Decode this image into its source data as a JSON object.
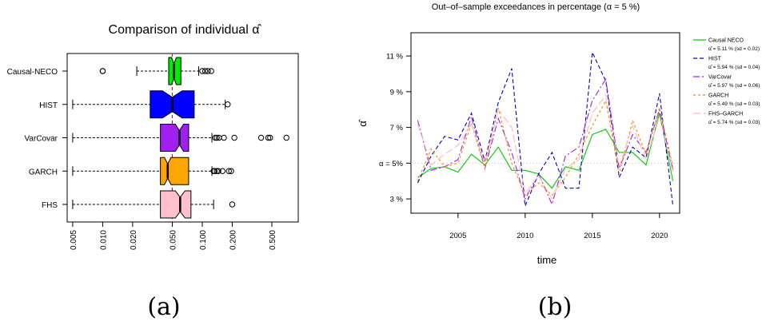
{
  "chart_data": [
    {
      "type": "boxplot",
      "title": "Comparison of individual α̂",
      "xscale": "log",
      "xlim": [
        0.005,
        0.5
      ],
      "xticks": [
        "0.005",
        "0.010",
        "0.020",
        "0.050",
        "0.100",
        "0.200",
        "0.500"
      ],
      "reference_line": 0.05,
      "series": [
        {
          "name": "Causal-NECO",
          "color": "#00ee00",
          "whisker_low": 0.022,
          "q1": 0.046,
          "median": 0.052,
          "q3": 0.061,
          "whisker_high": 0.092,
          "outliers": [
            0.01,
            0.01,
            0.1,
            0.107,
            0.114,
            0.123
          ]
        },
        {
          "name": "HIST",
          "color": "#0000ff",
          "whisker_low": 0.005,
          "q1": 0.03,
          "median": 0.05,
          "q3": 0.083,
          "whisker_high": 0.17,
          "outliers": [
            0.18
          ]
        },
        {
          "name": "VarCovar",
          "color": "#a020f0",
          "whisker_low": 0.005,
          "q1": 0.038,
          "median": 0.059,
          "q3": 0.073,
          "whisker_high": 0.125,
          "outliers": [
            0.135,
            0.14,
            0.147,
            0.165,
            0.21,
            0.39,
            0.46,
            0.48,
            0.7
          ]
        },
        {
          "name": "GARCH",
          "color": "#ffa500",
          "whisker_low": 0.005,
          "q1": 0.038,
          "median": 0.045,
          "q3": 0.073,
          "whisker_high": 0.125,
          "outliers": [
            0.13,
            0.133,
            0.14,
            0.145,
            0.16,
            0.185,
            0.195
          ]
        },
        {
          "name": "FHS",
          "color": "#ffc0cb",
          "whisker_low": 0.005,
          "q1": 0.038,
          "median": 0.06,
          "q3": 0.077,
          "whisker_high": 0.13,
          "outliers": [
            0.2
          ]
        }
      ]
    },
    {
      "type": "line",
      "title": "Out–of–sample exceedances in percentage (α = 5 %)",
      "xlabel": "time",
      "ylabel": "α̂",
      "x": [
        2002,
        2003,
        2004,
        2005,
        2006,
        2007,
        2008,
        2009,
        2010,
        2011,
        2012,
        2013,
        2014,
        2015,
        2016,
        2017,
        2018,
        2019,
        2020,
        2021
      ],
      "xlim": [
        2001.5,
        2021.5
      ],
      "xticks": [
        "2005",
        "2010",
        "2015",
        "2020"
      ],
      "ylim": [
        2.2,
        12.3
      ],
      "yticks": [
        3,
        5,
        7,
        9,
        11
      ],
      "ytick_labels": [
        "3 %",
        "α = 5%",
        "7 %",
        "9 %",
        "11 %"
      ],
      "hline": 5,
      "series": [
        {
          "name": "Causal NECO",
          "stat": "α̂ = 5.11 % (sd = 0.02)",
          "color": "#00cc00",
          "dash": "",
          "values": [
            4.2,
            4.7,
            4.8,
            4.5,
            5.5,
            4.9,
            5.9,
            4.6,
            4.6,
            4.4,
            3.6,
            4.8,
            4.6,
            6.6,
            6.9,
            5.6,
            5.6,
            4.9,
            7.8,
            4.0
          ]
        },
        {
          "name": "HIST",
          "stat": "α̂ = 5.94 % (sd = 0.04)",
          "color": "#0000cc",
          "dash": "5,3",
          "values": [
            3.9,
            5.4,
            6.5,
            6.3,
            7.8,
            5.1,
            8.4,
            10.3,
            2.6,
            4.4,
            5.6,
            3.6,
            3.6,
            11.2,
            9.6,
            4.2,
            5.9,
            5.3,
            8.9,
            2.6
          ]
        },
        {
          "name": "VarCovar",
          "stat": "α̂ = 5.97 % (sd = 0.06)",
          "color": "#a020f0",
          "dash": "8,3,2,3",
          "values": [
            7.4,
            4.6,
            4.8,
            5.2,
            7.6,
            4.7,
            7.5,
            5.6,
            3.0,
            4.4,
            2.7,
            5.4,
            5.9,
            8.5,
            9.7,
            4.7,
            6.6,
            5.6,
            8.0,
            4.6
          ]
        },
        {
          "name": "GARCH",
          "stat": "α̂ = 5.49 % (sd = 0.03)",
          "color": "#ff8c00",
          "dash": "3,3",
          "values": [
            4.0,
            5.8,
            4.8,
            5.0,
            7.2,
            4.7,
            8.1,
            5.0,
            3.2,
            3.9,
            3.2,
            4.2,
            5.5,
            7.1,
            8.5,
            4.4,
            7.4,
            5.5,
            8.1,
            4.8
          ]
        },
        {
          "name": "FHS–GARCH",
          "stat": "α̂ = 5.74 % (sd = 0.03)",
          "color": "#ffb6c1",
          "dash": "9,4",
          "values": [
            7.2,
            4.9,
            5.5,
            6.0,
            7.2,
            5.0,
            8.0,
            7.0,
            3.3,
            4.3,
            3.0,
            4.7,
            5.2,
            7.8,
            8.8,
            4.8,
            7.1,
            5.2,
            7.6,
            4.5
          ]
        }
      ]
    }
  ],
  "captions": [
    "(a)",
    "(b)"
  ]
}
